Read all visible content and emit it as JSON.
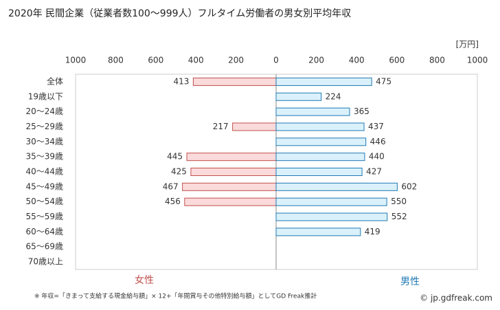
{
  "chart_data": {
    "type": "butterfly",
    "title": "2020年 民間企業（従業者数100〜999人）フルタイム労働者の男女別平均年収",
    "unit_label": "[万円]",
    "categories": [
      "全体",
      "19歳以下",
      "20〜24歳",
      "25〜29歳",
      "30〜34歳",
      "35〜39歳",
      "40〜44歳",
      "45〜49歳",
      "50〜54歳",
      "55〜59歳",
      "60〜64歳",
      "65〜69歳",
      "70歳以上"
    ],
    "series": [
      {
        "name": "女性",
        "color": "#c0504d",
        "fill": "#fadada",
        "values": [
          413,
          null,
          null,
          217,
          null,
          445,
          425,
          467,
          456,
          null,
          null,
          null,
          null
        ]
      },
      {
        "name": "男性",
        "color": "#1f78b4",
        "fill": "#daf1fb",
        "values": [
          475,
          224,
          365,
          437,
          446,
          440,
          427,
          602,
          550,
          552,
          419,
          null,
          null
        ]
      }
    ],
    "xlim": [
      0,
      1000
    ],
    "xticks": [
      0,
      200,
      400,
      600,
      800,
      1000
    ],
    "footnote": "※ 年収=「きまって支給する現金給与額」× 12+「年間賞与その他特別給与額」としてGD Freak推計",
    "source": "© jp.gdfreak.com"
  }
}
